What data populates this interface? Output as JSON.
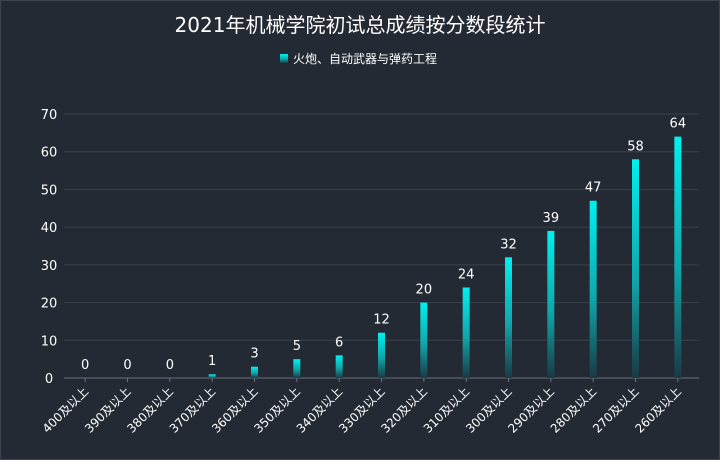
{
  "chart_data": {
    "type": "bar",
    "title": "2021年机械学院初试总成绩按分数段统计",
    "legend": [
      "火炮、自动武器与弹药工程"
    ],
    "legend_position": "top-center",
    "categories": [
      "400及以上",
      "390及以上",
      "380及以上",
      "370及以上",
      "360及以上",
      "350及以上",
      "340及以上",
      "330及以上",
      "320及以上",
      "310及以上",
      "300及以上",
      "290及以上",
      "280及以上",
      "270及以上",
      "260及以上"
    ],
    "series": [
      {
        "name": "火炮、自动武器与弹药工程",
        "values": [
          0,
          0,
          0,
          1,
          3,
          5,
          6,
          12,
          20,
          24,
          32,
          39,
          47,
          58,
          64
        ]
      }
    ],
    "xlabel": "",
    "ylabel": "",
    "ylim": [
      0,
      70
    ],
    "yticks": [
      0,
      10,
      20,
      30,
      40,
      50,
      60,
      70
    ],
    "grid": true,
    "colors": {
      "bar_top": "#00f0f0",
      "bar_bottom": "#1a3a44",
      "grid": "#3a404c",
      "axis": "#6a7080",
      "text": "#ffffff",
      "background": "#242a34"
    }
  }
}
